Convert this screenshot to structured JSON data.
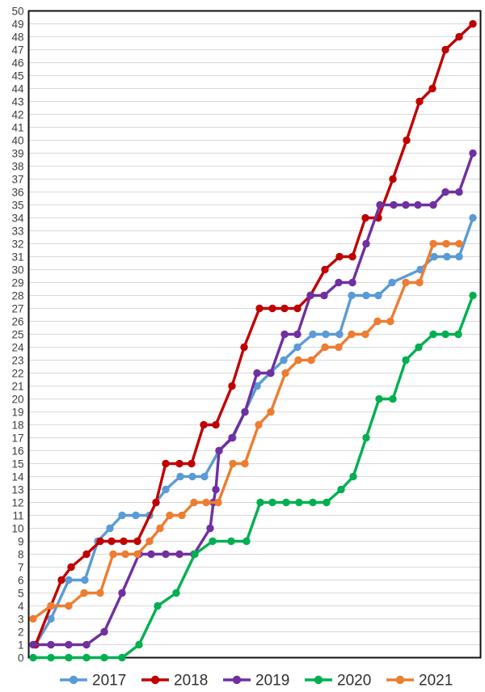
{
  "chart_data": {
    "type": "line",
    "title": "",
    "xlabel": "",
    "ylabel": "",
    "grid": "horizontal, every integer",
    "x_axis": {
      "tick_labels_visible": false
    },
    "y_axis": {
      "min": 0,
      "max": 50,
      "step": 1,
      "tick_labels": [
        "0",
        "1",
        "2",
        "3",
        "4",
        "5",
        "6",
        "7",
        "8",
        "9",
        "10",
        "11",
        "12",
        "13",
        "14",
        "15",
        "16",
        "17",
        "18",
        "19",
        "20",
        "21",
        "22",
        "23",
        "24",
        "25",
        "26",
        "27",
        "28",
        "29",
        "30",
        "31",
        "32",
        "33",
        "34",
        "35",
        "36",
        "37",
        "38",
        "39",
        "40",
        "41",
        "42",
        "43",
        "44",
        "45",
        "46",
        "47",
        "48",
        "49",
        "50"
      ]
    },
    "legend": {
      "position": "bottom",
      "entries": [
        "2017",
        "2018",
        "2019",
        "2020",
        "2021"
      ]
    },
    "series": [
      {
        "name": "2017",
        "color": "#5B9BD5",
        "final_value": 34,
        "points": [
          [
            44,
            1
          ],
          [
            63,
            3
          ],
          [
            85,
            6
          ],
          [
            105,
            6
          ],
          [
            121,
            9
          ],
          [
            136,
            10
          ],
          [
            151,
            11
          ],
          [
            168,
            11
          ],
          [
            185,
            11
          ],
          [
            193,
            12
          ],
          [
            205,
            13
          ],
          [
            223,
            14
          ],
          [
            238,
            14
          ],
          [
            253,
            14
          ],
          [
            271,
            16
          ],
          [
            288,
            17
          ],
          [
            303,
            19
          ],
          [
            318,
            21
          ],
          [
            334,
            22
          ],
          [
            351,
            23
          ],
          [
            368,
            24
          ],
          [
            387,
            25
          ],
          [
            403,
            25
          ],
          [
            420,
            25
          ],
          [
            435,
            28
          ],
          [
            453,
            28
          ],
          [
            468,
            28
          ],
          [
            485,
            29
          ],
          [
            520,
            30
          ],
          [
            537,
            31
          ],
          [
            553,
            31
          ],
          [
            568,
            31
          ],
          [
            585,
            34
          ]
        ]
      },
      {
        "name": "2018",
        "color": "#C00000",
        "final_value": 49,
        "points": [
          [
            44,
            1
          ],
          [
            63,
            4
          ],
          [
            76,
            6
          ],
          [
            88,
            7
          ],
          [
            107,
            8
          ],
          [
            124,
            9
          ],
          [
            138,
            9
          ],
          [
            153,
            9
          ],
          [
            170,
            9
          ],
          [
            193,
            12
          ],
          [
            205,
            15
          ],
          [
            222,
            15
          ],
          [
            237,
            15
          ],
          [
            252,
            18
          ],
          [
            267,
            18
          ],
          [
            287,
            21
          ],
          [
            302,
            24
          ],
          [
            321,
            27
          ],
          [
            337,
            27
          ],
          [
            352,
            27
          ],
          [
            368,
            27
          ],
          [
            384,
            28
          ],
          [
            402,
            30
          ],
          [
            420,
            31
          ],
          [
            436,
            31
          ],
          [
            452,
            34
          ],
          [
            468,
            34
          ],
          [
            486,
            37
          ],
          [
            503,
            40
          ],
          [
            519,
            43
          ],
          [
            535,
            44
          ],
          [
            551,
            47
          ],
          [
            568,
            48
          ],
          [
            585,
            49
          ]
        ]
      },
      {
        "name": "2019",
        "color": "#7030A0",
        "final_value": 39,
        "points": [
          [
            41,
            1
          ],
          [
            63,
            1
          ],
          [
            85,
            1
          ],
          [
            107,
            1
          ],
          [
            129,
            2
          ],
          [
            151,
            5
          ],
          [
            172,
            8
          ],
          [
            187,
            8
          ],
          [
            205,
            8
          ],
          [
            222,
            8
          ],
          [
            240,
            8
          ],
          [
            260,
            10
          ],
          [
            264,
            12
          ],
          [
            267,
            13
          ],
          [
            271,
            16
          ],
          [
            287,
            17
          ],
          [
            303,
            19
          ],
          [
            318,
            22
          ],
          [
            335,
            22
          ],
          [
            352,
            25
          ],
          [
            368,
            25
          ],
          [
            384,
            28
          ],
          [
            401,
            28
          ],
          [
            419,
            29
          ],
          [
            436,
            29
          ],
          [
            453,
            32
          ],
          [
            470,
            35
          ],
          [
            487,
            35
          ],
          [
            502,
            35
          ],
          [
            517,
            35
          ],
          [
            536,
            35
          ],
          [
            551,
            36
          ],
          [
            568,
            36
          ],
          [
            585,
            39
          ]
        ]
      },
      {
        "name": "2020",
        "color": "#00B050",
        "final_value": 28,
        "points": [
          [
            41,
            0
          ],
          [
            63,
            0
          ],
          [
            85,
            0
          ],
          [
            107,
            0
          ],
          [
            129,
            0
          ],
          [
            151,
            0
          ],
          [
            172,
            1
          ],
          [
            195,
            4
          ],
          [
            218,
            5
          ],
          [
            241,
            8
          ],
          [
            263,
            9
          ],
          [
            286,
            9
          ],
          [
            305,
            9
          ],
          [
            322,
            12
          ],
          [
            337,
            12
          ],
          [
            354,
            12
          ],
          [
            370,
            12
          ],
          [
            387,
            12
          ],
          [
            404,
            12
          ],
          [
            422,
            13
          ],
          [
            437,
            14
          ],
          [
            453,
            17
          ],
          [
            469,
            20
          ],
          [
            486,
            20
          ],
          [
            502,
            23
          ],
          [
            518,
            24
          ],
          [
            536,
            25
          ],
          [
            551,
            25
          ],
          [
            567,
            25
          ],
          [
            585,
            28
          ]
        ]
      },
      {
        "name": "2021",
        "color": "#ED7D31",
        "final_value": 32,
        "points": [
          [
            41,
            3
          ],
          [
            63,
            4
          ],
          [
            85,
            4
          ],
          [
            104,
            5
          ],
          [
            124,
            5
          ],
          [
            140,
            8
          ],
          [
            155,
            8
          ],
          [
            170,
            8
          ],
          [
            185,
            9
          ],
          [
            198,
            10
          ],
          [
            210,
            11
          ],
          [
            225,
            11
          ],
          [
            240,
            12
          ],
          [
            255,
            12
          ],
          [
            270,
            12
          ],
          [
            288,
            15
          ],
          [
            303,
            15
          ],
          [
            320,
            18
          ],
          [
            335,
            19
          ],
          [
            353,
            22
          ],
          [
            369,
            23
          ],
          [
            385,
            23
          ],
          [
            402,
            24
          ],
          [
            419,
            24
          ],
          [
            435,
            25
          ],
          [
            452,
            25
          ],
          [
            467,
            26
          ],
          [
            483,
            26
          ],
          [
            502,
            29
          ],
          [
            519,
            29
          ],
          [
            536,
            32
          ],
          [
            552,
            32
          ],
          [
            568,
            32
          ]
        ]
      }
    ],
    "style": {
      "grid_color": "#D9D9D9",
      "border_color": "#111111",
      "tick_label_color": "#3d3d3d",
      "legend_label_color": "#303030",
      "background": "#ffffff",
      "line_width": 3.4,
      "marker_radius": 4.7
    }
  }
}
